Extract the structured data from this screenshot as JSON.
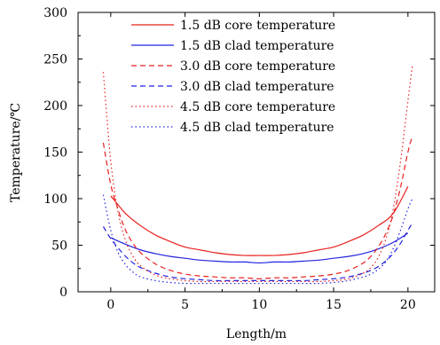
{
  "chart_data": {
    "type": "line",
    "xlabel": "Length/m",
    "ylabel": "Temperature/℃",
    "xlim": [
      -2.2,
      21.8
    ],
    "ylim": [
      0,
      300
    ],
    "x_ticks": [
      0,
      5,
      10,
      15,
      20
    ],
    "y_ticks": [
      0,
      50,
      100,
      150,
      200,
      250,
      300
    ],
    "legend_position": "top-center",
    "grid": false,
    "series": [
      {
        "name": "1.5 dB core temperature",
        "color": "#e8201e",
        "dash": "solid",
        "x": [
          0,
          1,
          2,
          3,
          4,
          5,
          6,
          7,
          8,
          9,
          10,
          11,
          12,
          13,
          14,
          15,
          16,
          17,
          18,
          19,
          20
        ],
        "y": [
          103,
          84,
          71,
          61,
          54,
          48,
          45,
          42,
          40,
          39,
          39,
          39,
          40,
          42,
          45,
          48,
          54,
          61,
          71,
          84,
          113
        ]
      },
      {
        "name": "1.5 dB clad temperature",
        "color": "#2323e0",
        "dash": "solid",
        "x": [
          0,
          1,
          2,
          3,
          4,
          5,
          6,
          7,
          8,
          9,
          10,
          11,
          12,
          13,
          14,
          15,
          16,
          17,
          18,
          19,
          20
        ],
        "y": [
          58,
          51,
          45,
          41,
          38,
          36,
          34,
          33,
          32,
          32,
          31,
          32,
          32,
          33,
          34,
          36,
          38,
          41,
          46,
          53,
          63
        ]
      },
      {
        "name": "3.0 dB core temperature",
        "color": "#e8201e",
        "dash": "dashed",
        "x": [
          -0.5,
          0,
          0.5,
          1,
          1.5,
          2,
          3,
          4,
          5,
          6,
          7,
          8,
          9,
          10,
          11,
          12,
          13,
          14,
          15,
          16,
          17,
          17.5,
          18,
          18.5,
          19,
          19.5,
          20,
          20.3
        ],
        "y": [
          160,
          115,
          88,
          66,
          52,
          42,
          30,
          23,
          19,
          17,
          16,
          15,
          15,
          14,
          15,
          15,
          16,
          17,
          19,
          23,
          31,
          38,
          48,
          62,
          82,
          112,
          150,
          167
        ]
      },
      {
        "name": "3.0 dB clad temperature",
        "color": "#2323e0",
        "dash": "dashed",
        "x": [
          -0.5,
          0,
          0.5,
          1,
          1.5,
          2,
          3,
          4,
          5,
          6,
          7,
          8,
          9,
          10,
          11,
          12,
          13,
          14,
          15,
          16,
          17,
          17.5,
          18,
          18.5,
          19,
          19.5,
          20,
          20.3
        ],
        "y": [
          70,
          57,
          47,
          38,
          31,
          26,
          20,
          16,
          14,
          13,
          12,
          12,
          12,
          12,
          12,
          12,
          12,
          13,
          14,
          16,
          20,
          23,
          27,
          33,
          41,
          52,
          66,
          74
        ]
      },
      {
        "name": "4.5 dB core temperature",
        "color": "#e8201e",
        "dash": "dotted",
        "x": [
          -0.5,
          0,
          0.5,
          1,
          1.5,
          2,
          3,
          4,
          5,
          6,
          7,
          8,
          9,
          10,
          11,
          12,
          13,
          14,
          15,
          16,
          17,
          17.5,
          18,
          18.5,
          19,
          19.5,
          20,
          20.3
        ],
        "y": [
          236,
          140,
          85,
          55,
          38,
          28,
          18,
          14,
          12,
          11,
          11,
          11,
          11,
          11,
          11,
          11,
          11,
          11,
          12,
          14,
          20,
          26,
          37,
          56,
          88,
          140,
          205,
          243
        ]
      },
      {
        "name": "4.5 dB clad temperature",
        "color": "#2323e0",
        "dash": "dotted",
        "x": [
          -0.5,
          0,
          0.5,
          1,
          1.5,
          2,
          3,
          4,
          5,
          6,
          7,
          8,
          9,
          10,
          11,
          12,
          13,
          14,
          15,
          16,
          17,
          17.5,
          18,
          18.5,
          19,
          19.5,
          20,
          20.3
        ],
        "y": [
          104,
          66,
          42,
          29,
          21,
          16,
          12,
          10,
          9,
          9,
          9,
          9,
          9,
          9,
          9,
          9,
          9,
          9,
          10,
          12,
          16,
          19,
          24,
          32,
          46,
          66,
          89,
          100
        ]
      }
    ]
  }
}
